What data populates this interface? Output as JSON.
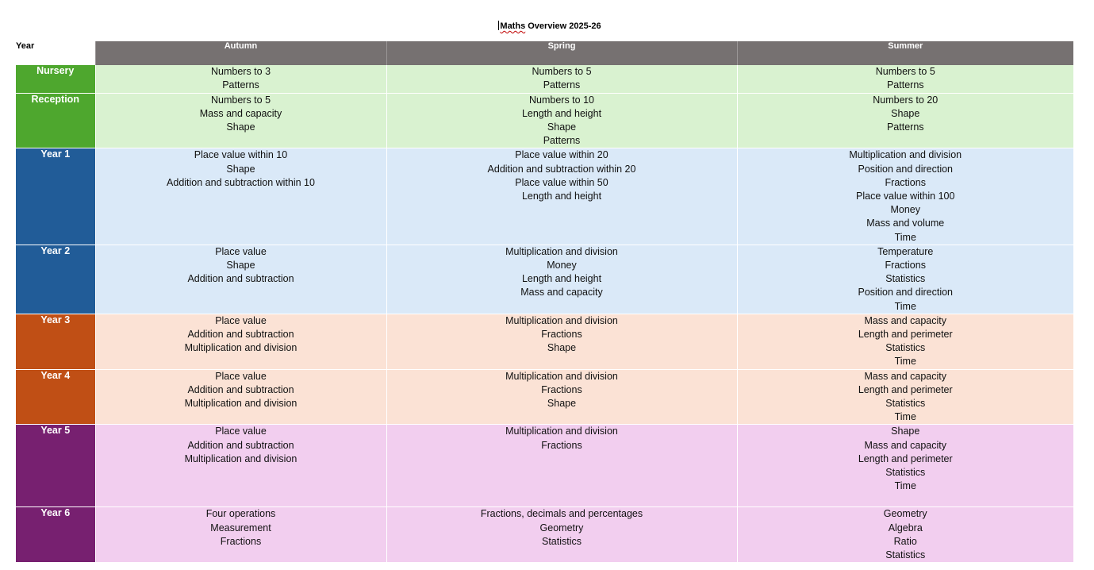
{
  "title_first_word": "Maths",
  "title_rest": " Overview 2025-26",
  "headers": {
    "year": "Year",
    "terms": [
      "Autumn",
      "Spring",
      "Summer"
    ]
  },
  "rows": [
    {
      "year": "Nursery",
      "autumn": [
        "Numbers to 3",
        "Patterns"
      ],
      "spring": [
        "Numbers to 5",
        "Patterns"
      ],
      "summer": [
        "Numbers to 5",
        "Patterns"
      ]
    },
    {
      "year": "Reception",
      "autumn": [
        "Numbers to 5",
        "Mass and capacity",
        "Shape"
      ],
      "spring": [
        "Numbers to 10",
        "Length and height",
        "Shape",
        "Patterns"
      ],
      "summer": [
        "Numbers to 20",
        "Shape",
        "Patterns"
      ]
    },
    {
      "year": "Year 1",
      "autumn": [
        "Place value within 10",
        "Shape",
        "Addition and subtraction within 10"
      ],
      "spring": [
        "Place value within 20",
        "Addition and subtraction within 20",
        "Place value within 50",
        "Length and height"
      ],
      "summer": [
        "Multiplication and division",
        "Position and direction",
        "Fractions",
        "Place value within 100",
        "Money",
        "Mass and volume",
        "Time"
      ]
    },
    {
      "year": "Year 2",
      "autumn": [
        "Place value",
        "Shape",
        "Addition and subtraction"
      ],
      "spring": [
        "Multiplication and division",
        "Money",
        "Length and height",
        "Mass and capacity"
      ],
      "summer": [
        "Temperature",
        "Fractions",
        "Statistics",
        "Position and direction",
        "Time"
      ]
    },
    {
      "year": "Year 3",
      "autumn": [
        "Place value",
        "Addition and subtraction",
        "Multiplication and division"
      ],
      "spring": [
        "Multiplication and division",
        "Fractions",
        "Shape"
      ],
      "summer": [
        "Mass and capacity",
        "Length and perimeter",
        "Statistics",
        "Time"
      ]
    },
    {
      "year": "Year 4",
      "autumn": [
        "Place value",
        "Addition and subtraction",
        "Multiplication and division"
      ],
      "spring": [
        "Multiplication and division",
        "Fractions",
        "Shape"
      ],
      "summer": [
        "Mass and capacity",
        "Length and perimeter",
        "Statistics",
        "Time"
      ]
    },
    {
      "year": "Year 5",
      "autumn": [
        "Place value",
        "Addition and subtraction",
        "Multiplication and division"
      ],
      "spring": [
        "Multiplication and division",
        "Fractions"
      ],
      "summer": [
        "Shape",
        "Mass and capacity",
        "Length and perimeter",
        "Statistics",
        "Time"
      ]
    },
    {
      "year": "Year 6",
      "autumn": [
        "Four operations",
        "Measurement",
        "Fractions"
      ],
      "spring": [
        "Fractions, decimals and percentages",
        "Geometry",
        "Statistics"
      ],
      "summer": [
        "Geometry",
        "Algebra",
        "Ratio",
        "Statistics"
      ]
    }
  ],
  "colors": {
    "header_bg": "#767171",
    "eyfs": {
      "label": "#4ea72e",
      "fill": "#d9f2d0"
    },
    "ks1": {
      "label": "#215c98",
      "fill": "#dae9f8"
    },
    "lks2": {
      "label": "#c04f15",
      "fill": "#fbe2d5"
    },
    "uks2": {
      "label": "#772070",
      "fill": "#f2ceef"
    }
  }
}
